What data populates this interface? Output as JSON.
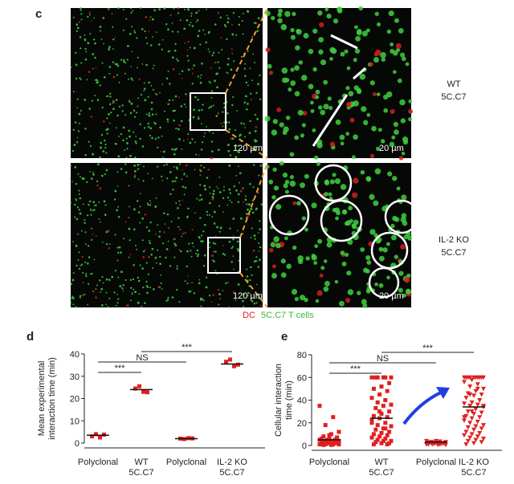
{
  "panel_c": {
    "label": "c",
    "rows": [
      {
        "scale_left": "120 µm",
        "scale_right": "20 µm",
        "condition": [
          "WT",
          "5C.C7"
        ]
      },
      {
        "scale_left": "120 µm",
        "scale_right": "20 µm",
        "condition": [
          "IL-2 KO",
          "5C.C7"
        ]
      }
    ],
    "legend": {
      "dc": "DC",
      "t_cells": "5C.C7 T cells"
    }
  },
  "chart_data": [
    {
      "type": "dotplot",
      "panel_label": "d",
      "ylabel": [
        "Mean experimental",
        "interaction time (min)"
      ],
      "categories": [
        [
          "Polyclonal"
        ],
        [
          "WT",
          "5C.C7"
        ],
        [
          "Polyclonal"
        ],
        [
          "IL-2 KO",
          "5C.C7"
        ]
      ],
      "groups": [
        {
          "values": [
            3,
            4,
            2.5,
            3.8
          ],
          "mean": 3.5,
          "marker": "square"
        },
        {
          "values": [
            24.5,
            25.5,
            23,
            22.8
          ],
          "mean": 24,
          "marker": "square"
        },
        {
          "values": [
            2,
            1.8,
            2.2,
            2.1
          ],
          "mean": 2,
          "marker": "square"
        },
        {
          "values": [
            36.5,
            37.5,
            34.5,
            35.2
          ],
          "mean": 35.5,
          "marker": "square"
        }
      ],
      "color": "#e02020",
      "ylim": [
        0,
        40
      ],
      "yticks": [
        0,
        10,
        20,
        30,
        40
      ],
      "brackets": [
        {
          "label": "***",
          "between": [
            1,
            3
          ]
        },
        {
          "label": "NS",
          "between": [
            0,
            2
          ]
        },
        {
          "label": "***",
          "between": [
            0,
            1
          ]
        }
      ]
    },
    {
      "type": "dotplot",
      "panel_label": "e",
      "ylabel": [
        "Cellular interaction",
        "time (min)"
      ],
      "categories": [
        [
          "Polyclonal"
        ],
        [
          "WT",
          "5C.C7"
        ],
        [
          "Polyclonal"
        ],
        [
          "IL-2 KO",
          "5C.C7"
        ]
      ],
      "groups": [
        {
          "values": [
            35,
            25,
            18,
            12,
            10,
            8,
            7,
            6,
            6,
            5,
            5,
            5,
            4,
            4,
            4,
            3,
            3,
            3,
            2,
            2,
            2,
            2,
            1,
            1,
            1,
            1,
            0.5,
            0.5,
            7,
            9
          ],
          "mean": 5,
          "marker": "square"
        },
        {
          "values": [
            60,
            60,
            60,
            60,
            60,
            60,
            55,
            52,
            50,
            48,
            45,
            42,
            40,
            38,
            36,
            35,
            33,
            30,
            28,
            26,
            25,
            24,
            22,
            20,
            18,
            17,
            15,
            14,
            12,
            11,
            10,
            9,
            8,
            7,
            6,
            5,
            4,
            4,
            3,
            2,
            2,
            1,
            1,
            30,
            20,
            15
          ],
          "mean": 24,
          "marker": "square"
        },
        {
          "values": [
            4,
            3.5,
            3,
            3,
            2.5,
            2.5,
            2,
            2,
            2,
            1.5,
            1.5,
            1,
            1,
            1,
            0.5,
            0.5,
            3,
            2,
            4,
            1
          ],
          "mean": 3,
          "marker": "triangle"
        },
        {
          "values": [
            60,
            60,
            60,
            60,
            60,
            60,
            60,
            60,
            60,
            60,
            58,
            56,
            54,
            52,
            50,
            48,
            46,
            45,
            44,
            42,
            40,
            38,
            37,
            36,
            35,
            34,
            32,
            30,
            29,
            28,
            26,
            25,
            24,
            22,
            21,
            20,
            18,
            17,
            16,
            15,
            14,
            12,
            11,
            10,
            9,
            8,
            7,
            6,
            5,
            4,
            3,
            2,
            1,
            40,
            30,
            25,
            50,
            45,
            35
          ],
          "mean": 34,
          "marker": "triangle"
        }
      ],
      "color": "#e02020",
      "ylim": [
        0,
        80
      ],
      "yticks": [
        0,
        20,
        40,
        60,
        80
      ],
      "brackets": [
        {
          "label": "***",
          "between": [
            1,
            3
          ]
        },
        {
          "label": "NS",
          "between": [
            0,
            2
          ]
        },
        {
          "label": "***",
          "between": [
            0,
            1
          ]
        }
      ]
    }
  ]
}
